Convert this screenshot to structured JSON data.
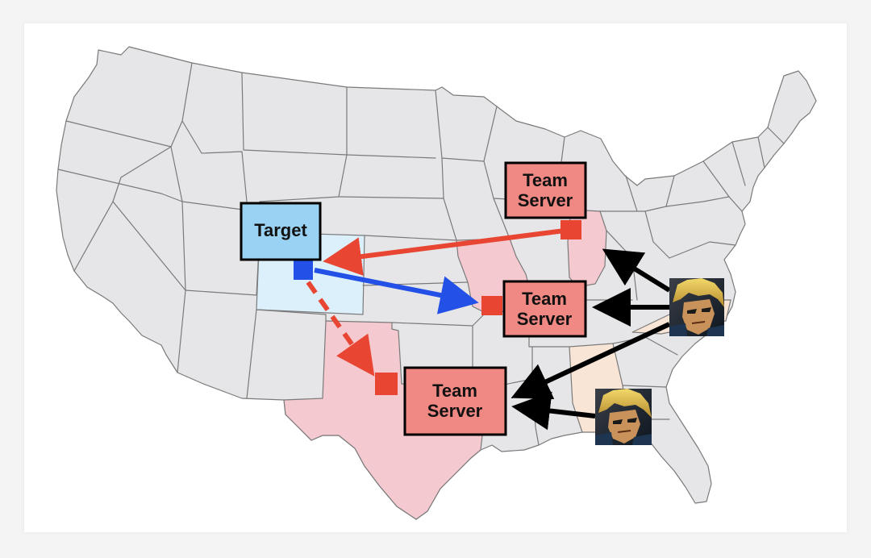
{
  "labels": {
    "target": "Target",
    "server_line1": "Team",
    "server_line2": "Server"
  },
  "colors": {
    "target_fill": "#9ad2f4",
    "server_fill": "#f08983",
    "red_arrow": "#e84633",
    "blue_arrow": "#2350e6",
    "black_arrow": "#000000",
    "highlight_pink": "#f4c9cf",
    "highlight_blue": "#dcf0fb",
    "highlight_peach": "#f9e5d5"
  },
  "icons": {
    "map": "us-map-icon",
    "attacker": "attacker-avatar-icon"
  }
}
